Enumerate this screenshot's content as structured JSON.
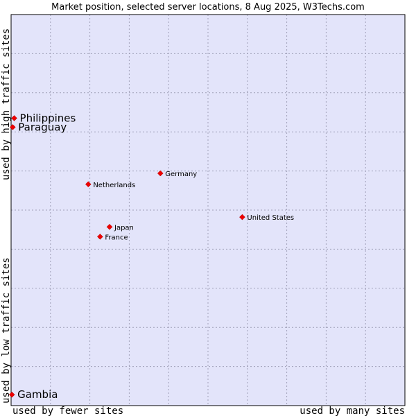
{
  "chart_data": {
    "type": "scatter",
    "title": "Market position, selected server locations, 8 Aug 2025, W3Techs.com",
    "xlabel_left": "used by fewer sites",
    "xlabel_right": "used by many sites",
    "ylabel_top": "used by high traffic sites",
    "ylabel_bottom": "used by low traffic sites",
    "xlim": [
      0,
      100
    ],
    "ylim": [
      0,
      100
    ],
    "grid": true,
    "marker_color": "#ee0000",
    "background_color": "#e3e4fa",
    "points": [
      {
        "name": "Philippines",
        "x": 0.8,
        "y": 73.5,
        "highlight": true
      },
      {
        "name": "Paraguay",
        "x": 0.4,
        "y": 71.2,
        "highlight": true
      },
      {
        "name": "Gambia",
        "x": 0.2,
        "y": 2.8,
        "highlight": true
      },
      {
        "name": "Germany",
        "x": 37.9,
        "y": 59.4,
        "highlight": false
      },
      {
        "name": "Netherlands",
        "x": 19.6,
        "y": 56.6,
        "highlight": false
      },
      {
        "name": "United States",
        "x": 58.7,
        "y": 48.2,
        "highlight": false
      },
      {
        "name": "Japan",
        "x": 25.0,
        "y": 45.7,
        "highlight": false
      },
      {
        "name": "France",
        "x": 22.6,
        "y": 43.2,
        "highlight": false
      }
    ]
  }
}
